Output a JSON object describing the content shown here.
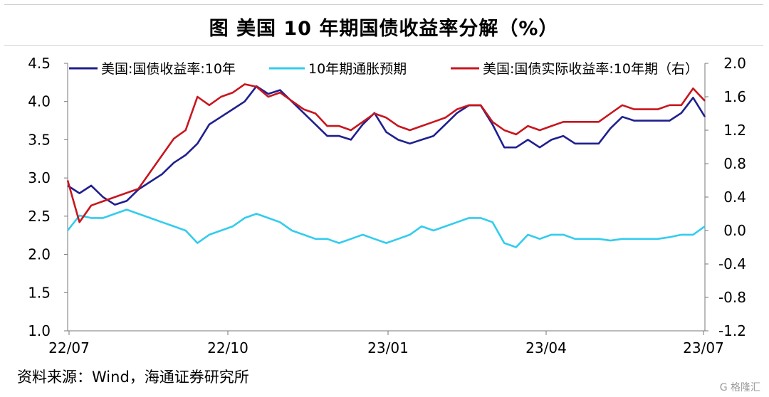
{
  "title": "图  美国 10 年期国债收益率分解（%）",
  "source": "资料来源：Wind，海通证券研究所",
  "watermark": "G 格隆汇",
  "chart_data": {
    "type": "line",
    "x_ticks": [
      "22/07",
      "22/10",
      "23/01",
      "23/04",
      "23/07"
    ],
    "y_left": {
      "ticks": [
        "4.5",
        "4.0",
        "3.5",
        "3.0",
        "2.5",
        "2.0",
        "1.5",
        "1.0"
      ],
      "ylim": [
        1.0,
        4.5
      ]
    },
    "y_right": {
      "ticks": [
        "2.0",
        "1.6",
        "1.2",
        "0.8",
        "0.4",
        "0.0",
        "-0.4",
        "-0.8",
        "-1.2"
      ],
      "ylim": [
        -1.2,
        2.0
      ]
    },
    "legend_position": "top",
    "series": [
      {
        "name": "美国:国债收益率:10年",
        "axis": "left",
        "color": "#1f1f8f",
        "x": [
          "2022-07-01",
          "2022-07-08",
          "2022-07-15",
          "2022-07-22",
          "2022-07-29",
          "2022-08-05",
          "2022-08-12",
          "2022-08-19",
          "2022-08-26",
          "2022-09-02",
          "2022-09-09",
          "2022-09-16",
          "2022-09-23",
          "2022-09-30",
          "2022-10-07",
          "2022-10-14",
          "2022-10-21",
          "2022-10-28",
          "2022-11-04",
          "2022-11-11",
          "2022-11-18",
          "2022-11-25",
          "2022-12-02",
          "2022-12-09",
          "2022-12-16",
          "2022-12-23",
          "2022-12-30",
          "2023-01-06",
          "2023-01-13",
          "2023-01-20",
          "2023-01-27",
          "2023-02-03",
          "2023-02-10",
          "2023-02-17",
          "2023-02-24",
          "2023-03-03",
          "2023-03-10",
          "2023-03-17",
          "2023-03-24",
          "2023-03-31",
          "2023-04-07",
          "2023-04-14",
          "2023-04-21",
          "2023-04-28",
          "2023-05-05",
          "2023-05-12",
          "2023-05-19",
          "2023-05-26",
          "2023-06-02",
          "2023-06-09",
          "2023-06-16",
          "2023-06-23",
          "2023-06-30",
          "2023-07-07",
          "2023-07-14"
        ],
        "values": [
          2.9,
          2.8,
          2.9,
          2.75,
          2.65,
          2.7,
          2.85,
          2.95,
          3.05,
          3.2,
          3.3,
          3.45,
          3.7,
          3.8,
          3.9,
          4.0,
          4.2,
          4.1,
          4.15,
          4.0,
          3.85,
          3.7,
          3.55,
          3.55,
          3.5,
          3.7,
          3.85,
          3.6,
          3.5,
          3.45,
          3.5,
          3.55,
          3.7,
          3.85,
          3.95,
          3.95,
          3.7,
          3.4,
          3.4,
          3.5,
          3.4,
          3.5,
          3.55,
          3.45,
          3.45,
          3.45,
          3.65,
          3.8,
          3.75,
          3.75,
          3.75,
          3.75,
          3.85,
          4.05,
          3.8
        ]
      },
      {
        "name": "10年期通胀预期",
        "axis": "right",
        "color": "#33ccee",
        "x": [
          "2022-07-01",
          "2022-07-08",
          "2022-07-15",
          "2022-07-22",
          "2022-07-29",
          "2022-08-05",
          "2022-08-12",
          "2022-08-19",
          "2022-08-26",
          "2022-09-02",
          "2022-09-09",
          "2022-09-16",
          "2022-09-23",
          "2022-09-30",
          "2022-10-07",
          "2022-10-14",
          "2022-10-21",
          "2022-10-28",
          "2022-11-04",
          "2022-11-11",
          "2022-11-18",
          "2022-11-25",
          "2022-12-02",
          "2022-12-09",
          "2022-12-16",
          "2022-12-23",
          "2022-12-30",
          "2023-01-06",
          "2023-01-13",
          "2023-01-20",
          "2023-01-27",
          "2023-02-03",
          "2023-02-10",
          "2023-02-17",
          "2023-02-24",
          "2023-03-03",
          "2023-03-10",
          "2023-03-17",
          "2023-03-24",
          "2023-03-31",
          "2023-04-07",
          "2023-04-14",
          "2023-04-21",
          "2023-04-28",
          "2023-05-05",
          "2023-05-12",
          "2023-05-19",
          "2023-05-26",
          "2023-06-02",
          "2023-06-09",
          "2023-06-16",
          "2023-06-23",
          "2023-06-30",
          "2023-07-07",
          "2023-07-14"
        ],
        "values": [
          0.0,
          0.18,
          0.15,
          0.15,
          0.2,
          0.25,
          0.2,
          0.15,
          0.1,
          0.05,
          0.0,
          -0.15,
          -0.05,
          0.0,
          0.05,
          0.15,
          0.2,
          0.15,
          0.1,
          0.0,
          -0.05,
          -0.1,
          -0.1,
          -0.15,
          -0.1,
          -0.05,
          -0.1,
          -0.15,
          -0.1,
          -0.05,
          0.05,
          0.0,
          0.05,
          0.1,
          0.15,
          0.15,
          0.1,
          -0.15,
          -0.2,
          -0.05,
          -0.1,
          -0.05,
          -0.05,
          -0.1,
          -0.1,
          -0.1,
          -0.12,
          -0.1,
          -0.1,
          -0.1,
          -0.1,
          -0.08,
          -0.05,
          -0.05,
          0.05
        ]
      },
      {
        "name": "美国:国债实际收益率:10年期（右）",
        "axis": "right",
        "color": "#c8161e",
        "x": [
          "2022-07-01",
          "2022-07-08",
          "2022-07-15",
          "2022-07-22",
          "2022-07-29",
          "2022-08-05",
          "2022-08-12",
          "2022-08-19",
          "2022-08-26",
          "2022-09-02",
          "2022-09-09",
          "2022-09-16",
          "2022-09-23",
          "2022-09-30",
          "2022-10-07",
          "2022-10-14",
          "2022-10-21",
          "2022-10-28",
          "2022-11-04",
          "2022-11-11",
          "2022-11-18",
          "2022-11-25",
          "2022-12-02",
          "2022-12-09",
          "2022-12-16",
          "2022-12-23",
          "2022-12-30",
          "2023-01-06",
          "2023-01-13",
          "2023-01-20",
          "2023-01-27",
          "2023-02-03",
          "2023-02-10",
          "2023-02-17",
          "2023-02-24",
          "2023-03-03",
          "2023-03-10",
          "2023-03-17",
          "2023-03-24",
          "2023-03-31",
          "2023-04-07",
          "2023-04-14",
          "2023-04-21",
          "2023-04-28",
          "2023-05-05",
          "2023-05-12",
          "2023-05-19",
          "2023-05-26",
          "2023-06-02",
          "2023-06-09",
          "2023-06-16",
          "2023-06-23",
          "2023-06-30",
          "2023-07-07",
          "2023-07-14"
        ],
        "values": [
          0.6,
          0.1,
          0.3,
          0.35,
          0.4,
          0.45,
          0.5,
          0.7,
          0.9,
          1.1,
          1.2,
          1.6,
          1.5,
          1.6,
          1.65,
          1.75,
          1.72,
          1.6,
          1.65,
          1.55,
          1.45,
          1.4,
          1.25,
          1.25,
          1.2,
          1.3,
          1.4,
          1.35,
          1.25,
          1.2,
          1.25,
          1.3,
          1.35,
          1.45,
          1.5,
          1.5,
          1.3,
          1.2,
          1.15,
          1.25,
          1.2,
          1.25,
          1.3,
          1.3,
          1.3,
          1.3,
          1.4,
          1.5,
          1.45,
          1.45,
          1.45,
          1.5,
          1.5,
          1.7,
          1.55
        ]
      }
    ]
  }
}
